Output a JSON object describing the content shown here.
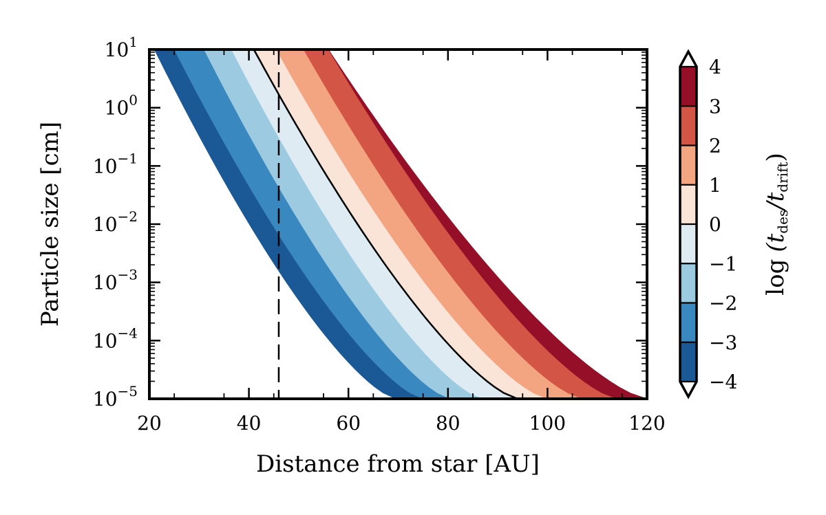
{
  "chart_data": {
    "type": "contourf",
    "xlabel": "Distance from star [AU]",
    "ylabel": "Particle size [cm]",
    "colorbar_label": {
      "prefix": "log",
      "expr": "(t",
      "sub1": "des",
      "mid": "/t",
      "sub2": "drift",
      "suffix": ")"
    },
    "xlim": [
      20,
      120
    ],
    "ylim_log10": [
      -5,
      1
    ],
    "x_ticks": [
      "20",
      "40",
      "60",
      "80",
      "100",
      "120"
    ],
    "y_ticks": [
      {
        "base": "10",
        "exp": "−5"
      },
      {
        "base": "10",
        "exp": "−4"
      },
      {
        "base": "10",
        "exp": "−3"
      },
      {
        "base": "10",
        "exp": "−2"
      },
      {
        "base": "10",
        "exp": "−1"
      },
      {
        "base": "10",
        "exp": "0"
      },
      {
        "base": "10",
        "exp": "1"
      }
    ],
    "colorbar_ticks": [
      "−4",
      "−3",
      "−2",
      "−1",
      "0",
      "1",
      "2",
      "3",
      "4"
    ],
    "colorbar_extend": "both",
    "levels": [
      -4,
      -3,
      -2,
      -1,
      0,
      1,
      2,
      3,
      4
    ],
    "colors": [
      "#1a5896",
      "#3a88c0",
      "#9ccae0",
      "#deebf3",
      "#fae3d7",
      "#f3a582",
      "#d25545",
      "#940f27"
    ],
    "vertical_dashed_line_x": 46,
    "solid_contour_level": 0,
    "contour_x_at_bottom": [
      {
        "level": -4,
        "x": 69.5
      },
      {
        "level": -3,
        "x": 75
      },
      {
        "level": -2,
        "x": 80.5
      },
      {
        "level": -1,
        "x": 87
      },
      {
        "level": 0,
        "x": 94
      },
      {
        "level": 1,
        "x": 100
      },
      {
        "level": 2,
        "x": 107
      },
      {
        "level": 3,
        "x": 114
      },
      {
        "level": 4,
        "x": 120
      }
    ],
    "contour_x_at_top": [
      {
        "level": -4,
        "x": 21
      },
      {
        "level": -3,
        "x": 25
      },
      {
        "level": -2,
        "x": 31
      },
      {
        "level": -1,
        "x": 36.5
      },
      {
        "level": 0,
        "x": 41
      },
      {
        "level": 1,
        "x": 45.5
      },
      {
        "level": 2,
        "x": 51
      },
      {
        "level": 3,
        "x": 56
      },
      {
        "level": 4,
        "x": 56
      }
    ]
  }
}
